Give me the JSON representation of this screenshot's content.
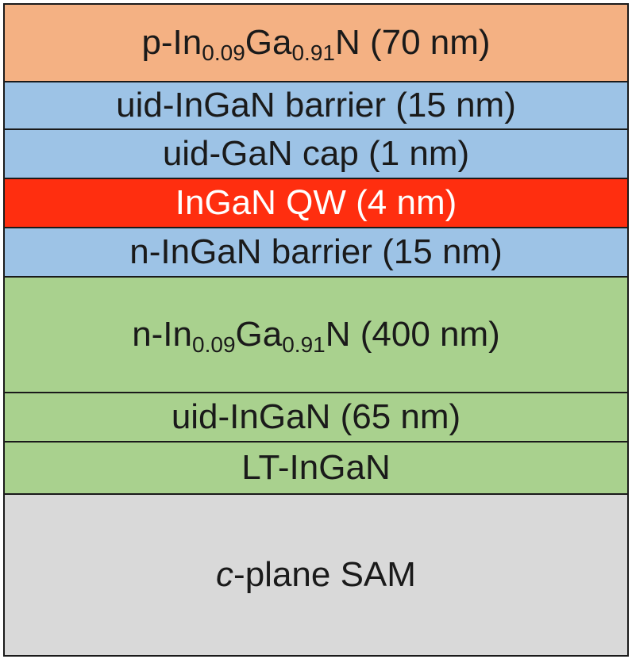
{
  "colors": {
    "p_type": "#f4b183",
    "uid": "#9dc3e6",
    "qw": "#ff2e0f",
    "n_type": "#a9d18e",
    "substrate": "#d9d9d9",
    "border": "#1a1a1a"
  },
  "layers": [
    {
      "prefix": "p-In",
      "sub1": "0.09",
      "mid": "Ga",
      "sub2": "0.91",
      "suffix": "N (70 nm)"
    },
    {
      "label": "uid-InGaN barrier (15 nm)"
    },
    {
      "label": "uid-GaN cap (1 nm)"
    },
    {
      "label": "InGaN QW (4 nm)"
    },
    {
      "label": "n-InGaN barrier (15 nm)"
    },
    {
      "prefix": "n-In",
      "sub1": "0.09",
      "mid": "Ga",
      "sub2": "0.91",
      "suffix": "N (400 nm)"
    },
    {
      "label": "uid-InGaN (65 nm)"
    },
    {
      "label": "LT-InGaN"
    },
    {
      "italic": "c",
      "rest": "-plane SAM"
    }
  ]
}
